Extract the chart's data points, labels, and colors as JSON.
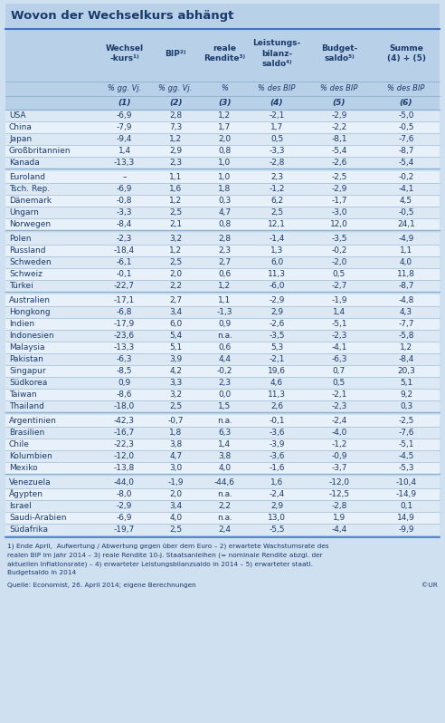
{
  "title": "Wovon der Wechselkurs abhängt",
  "col_headers": [
    "Wechsel\n-kurs¹⁾",
    "BIP²⁾",
    "reale\nRendite³⁾",
    "Leistungs-\nbilanz-\nsaldo⁴⁾",
    "Budget-\nsaldo⁵⁾",
    "Summe\n(4) + (5)"
  ],
  "subheaders": [
    "% gg. Vj.",
    "% gg. Vj.",
    "%",
    "% des BIP",
    "% des BIP",
    "% des BIP"
  ],
  "col_nums": [
    "(1)",
    "(2)",
    "(3)",
    "(4)",
    "(5)",
    "(6)"
  ],
  "groups": [
    {
      "rows": [
        [
          "USA",
          "-6,9",
          "2,8",
          "1,2",
          "-2,1",
          "-2,9",
          "-5,0"
        ],
        [
          "China",
          "-7,9",
          "7,3",
          "1,7",
          "1,7",
          "-2,2",
          "-0,5"
        ],
        [
          "Japan",
          "-9,4",
          "1,2",
          "2,0",
          "0,5",
          "-8,1",
          "-7,6"
        ],
        [
          "Großbritannien",
          "1,4",
          "2,9",
          "0,8",
          "-3,3",
          "-5,4",
          "-8,7"
        ],
        [
          "Kanada",
          "-13,3",
          "2,3",
          "1,0",
          "-2,8",
          "-2,6",
          "-5,4"
        ]
      ]
    },
    {
      "rows": [
        [
          "Euroland",
          "–",
          "1,1",
          "1,0",
          "2,3",
          "-2,5",
          "-0,2"
        ],
        [
          "Tsch. Rep.",
          "-6,9",
          "1,6",
          "1,8",
          "-1,2",
          "-2,9",
          "-4,1"
        ],
        [
          "Dänemark",
          "-0,8",
          "1,2",
          "0,3",
          "6,2",
          "-1,7",
          "4,5"
        ],
        [
          "Ungarn",
          "-3,3",
          "2,5",
          "4,7",
          "2,5",
          "-3,0",
          "-0,5"
        ],
        [
          "Norwegen",
          "-8,4",
          "2,1",
          "0,8",
          "12,1",
          "12,0",
          "24,1"
        ]
      ]
    },
    {
      "rows": [
        [
          "Polen",
          "-2,3",
          "3,2",
          "2,8",
          "-1,4",
          "-3,5",
          "-4,9"
        ],
        [
          "Russland",
          "-18,4",
          "1,2",
          "2,3",
          "1,3",
          "-0,2",
          "1,1"
        ],
        [
          "Schweden",
          "-6,1",
          "2,5",
          "2,7",
          "6,0",
          "-2,0",
          "4,0"
        ],
        [
          "Schweiz",
          "-0,1",
          "2,0",
          "0,6",
          "11,3",
          "0,5",
          "11,8"
        ],
        [
          "Türkei",
          "-22,7",
          "2,2",
          "1,2",
          "-6,0",
          "-2,7",
          "-8,7"
        ]
      ]
    },
    {
      "rows": [
        [
          "Australien",
          "-17,1",
          "2,7",
          "1,1",
          "-2,9",
          "-1,9",
          "-4,8"
        ],
        [
          "Hongkong",
          "-6,8",
          "3,4",
          "-1,3",
          "2,9",
          "1,4",
          "4,3"
        ],
        [
          "Indien",
          "-17,9",
          "6,0",
          "0,9",
          "-2,6",
          "-5,1",
          "-7,7"
        ],
        [
          "Indonesien",
          "-23,6",
          "5,4",
          "n.a.",
          "-3,5",
          "-2,3",
          "-5,8"
        ],
        [
          "Malaysia",
          "-13,3",
          "5,1",
          "0,6",
          "5,3",
          "-4,1",
          "1,2"
        ],
        [
          "Pakistan",
          "-6,3",
          "3,9",
          "4,4",
          "-2,1",
          "-6,3",
          "-8,4"
        ],
        [
          "Singapur",
          "-8,5",
          "4,2",
          "-0,2",
          "19,6",
          "0,7",
          "20,3"
        ],
        [
          "Südkorea",
          "0,9",
          "3,3",
          "2,3",
          "4,6",
          "0,5",
          "5,1"
        ],
        [
          "Taiwan",
          "-8,6",
          "3,2",
          "0,0",
          "11,3",
          "-2,1",
          "9,2"
        ],
        [
          "Thailand",
          "-18,0",
          "2,5",
          "1,5",
          "2,6",
          "-2,3",
          "0,3"
        ]
      ]
    },
    {
      "rows": [
        [
          "Argentinien",
          "-42,3",
          "-0,7",
          "n.a.",
          "-0,1",
          "-2,4",
          "-2,5"
        ],
        [
          "Brasilien",
          "-16,7",
          "1,8",
          "6,3",
          "-3,6",
          "-4,0",
          "-7,6"
        ],
        [
          "Chile",
          "-22,3",
          "3,8",
          "1,4",
          "-3,9",
          "-1,2",
          "-5,1"
        ],
        [
          "Kolumbien",
          "-12,0",
          "4,7",
          "3,8",
          "-3,6",
          "-0,9",
          "-4,5"
        ],
        [
          "Mexiko",
          "-13,8",
          "3,0",
          "4,0",
          "-1,6",
          "-3,7",
          "-5,3"
        ]
      ]
    },
    {
      "rows": [
        [
          "Venezuela",
          "-44,0",
          "-1,9",
          "-44,6",
          "1,6",
          "-12,0",
          "-10,4"
        ],
        [
          "Ägypten",
          "-8,0",
          "2,0",
          "n.a.",
          "-2,4",
          "-12,5",
          "-14,9"
        ],
        [
          "Israel",
          "-2,9",
          "3,4",
          "2,2",
          "2,9",
          "-2,8",
          "0,1"
        ],
        [
          "Saudi-Arabien",
          "-6,9",
          "4,0",
          "n.a.",
          "13,0",
          "1,9",
          "14,9"
        ],
        [
          "Südafrika",
          "-19,7",
          "2,5",
          "2,4",
          "-5,5",
          "-4,4",
          "-9,9"
        ]
      ]
    }
  ],
  "footnote": "1) Ende April,  Aufwertung / Abwertung gegen über dem Euro – 2) erwartete Wachstumsrate des\nrealen BIP im Jahr 2014 – 3) reale Rendite 10-j. Staatsanleihen (= nominale Rendite abzgl. der\naktuellen Inflationsrate) – 4) erwarteter Leistungsbilanzsaldo in 2014 – 5) erwarteter staatl.\nBudgetsaldo in 2014",
  "source": "Quelle: Economist, 26. April 2014; eigene Berechnungen",
  "copyright": "©UR",
  "bg_color": "#cfe0f0",
  "header_bg": "#b8d0e8",
  "title_bg": "#b8d0e8",
  "title_color": "#1a3a6b",
  "text_color": "#1a3a6b",
  "row_alt1": "#dce9f5",
  "row_alt2": "#e8f1fa",
  "line_color": "#8ab0d0",
  "sep_color": "#8ab0d0"
}
